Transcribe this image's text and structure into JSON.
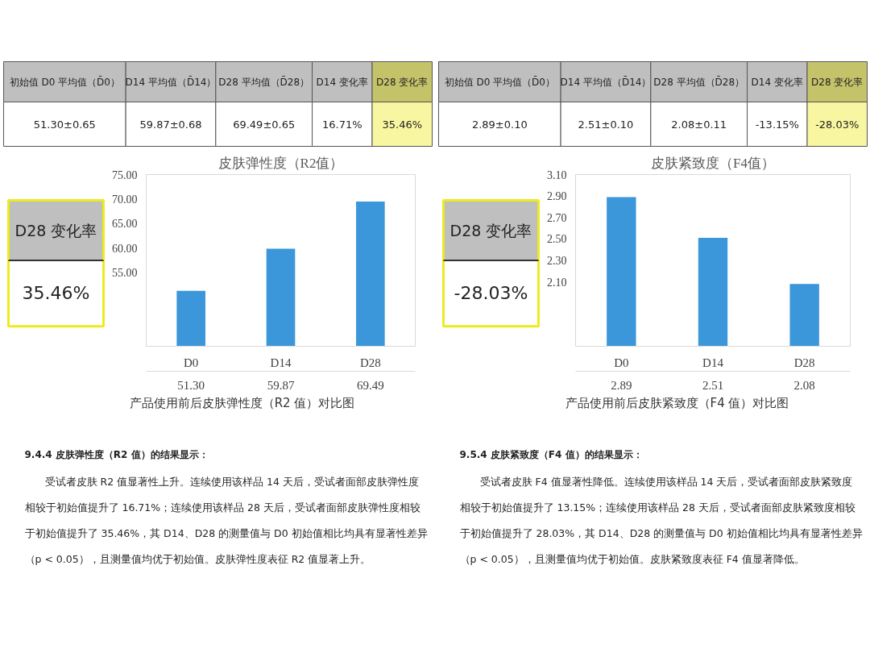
{
  "chart_data": [
    {
      "type": "other",
      "annotations": [
        "初始值 D0 平均值（D̄0）",
        "D14 平均值（D̄14）",
        "D28 平均值（D̄28）",
        "D14 变化率",
        "D28 变化率",
        "51.30±0.65",
        "59.87±0.68",
        "69.49±0.65",
        "16.71%",
        "35.46%"
      ],
      "colors": [
        "#bfbfbf",
        "#bfbfbf",
        "#bfbfbf",
        "#bfbfbf",
        "#c5c36a",
        "#ffffff",
        "#ffffff",
        "#ffffff",
        "#ffffff",
        "#f8f6a0"
      ]
    },
    {
      "type": "bar",
      "title": "皮肤弹性度（R2值）",
      "categories": [
        "D0",
        "D14",
        "D28"
      ],
      "values": [
        51.3,
        59.87,
        69.49
      ],
      "color": "#3b96da",
      "ylim": [
        40,
        75
      ],
      "yticks": [
        {
          "value": 55,
          "label": "55.00"
        },
        {
          "value": 60,
          "label": "60.00"
        },
        {
          "value": 65,
          "label": "65.00"
        },
        {
          "value": 70,
          "label": "70.00"
        },
        {
          "value": 75,
          "label": "75.00"
        }
      ],
      "value_labels": [
        "51.30",
        "59.87",
        "69.49"
      ],
      "annotations": [
        "D28 变化率",
        "35.46%",
        "产品使用前后皮肤弹性度（R2 值）对比图",
        "9.4.4  皮肤弹性度（R2 值）的结果显示：",
        "受试者皮肤 R2 值显著性上升。连续使用该样品 14 天后，受试者面部皮肤弹性度相较于初始值提升了 16.71%；连续使用该样品 28 天后，受试者面部皮肤弹性度相较于初始值提升了 35.46%，其 D14、D28 的测量值与 D0 初始值相比均具有显著性差异（p < 0.05），且测量值均优于初始值。皮肤弹性度表征 R2 值显著上升。"
      ]
    },
    {
      "type": "other",
      "annotations": [
        "初始值 D0 平均值（D̄0）",
        "D14 平均值（D̄14）",
        "D28 平均值（D̄28）",
        "D14 变化率",
        "D28 变化率",
        "2.89±0.10",
        "2.51±0.10",
        "2.08±0.11",
        "-13.15%",
        "-28.03%"
      ],
      "colors": [
        "#bfbfbf",
        "#bfbfbf",
        "#bfbfbf",
        "#bfbfbf",
        "#c5c36a",
        "#ffffff",
        "#ffffff",
        "#ffffff",
        "#ffffff",
        "#f8f6a0"
      ]
    },
    {
      "type": "bar",
      "title": "皮肤紧致度（F4值）",
      "categories": [
        "D0",
        "D14",
        "D28"
      ],
      "values": [
        2.89,
        2.51,
        2.08
      ],
      "color": "#3b96da",
      "ylim": [
        1.5,
        3.1
      ],
      "yticks": [
        {
          "value": 2.1,
          "label": "2.10"
        },
        {
          "value": 2.3,
          "label": "2.30"
        },
        {
          "value": 2.5,
          "label": "2.50"
        },
        {
          "value": 2.7,
          "label": "2.70"
        },
        {
          "value": 2.9,
          "label": "2.90"
        },
        {
          "value": 3.1,
          "label": "3.10"
        }
      ],
      "value_labels": [
        "2.89",
        "2.51",
        "2.08"
      ],
      "annotations": [
        "D28 变化率",
        "-28.03%",
        "产品使用前后皮肤紧致度（F4 值）对比图",
        "9.5.4  皮肤紧致度（F4 值）的结果显示：",
        "受试者皮肤 F4 值显著性降低。连续使用该样品 14 天后，受试者面部皮肤紧致度相较于初始值提升了 13.15%；连续使用该样品 28 天后，受试者面部皮肤紧致度相较于初始值提升了 28.03%，其 D14、D28 的测量值与 D0 初始值相比均具有显著性差异（p < 0.05），且测量值均优于初始值。皮肤紧致度表征 F4 值显著降低。"
      ]
    }
  ]
}
